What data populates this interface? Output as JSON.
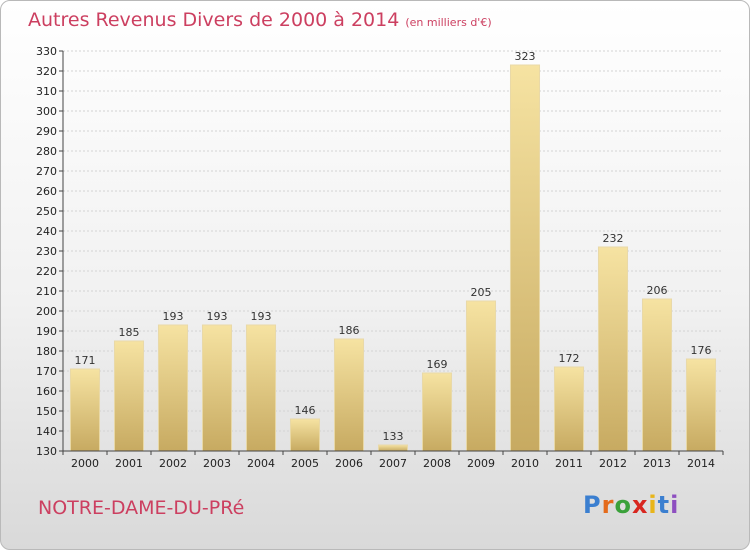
{
  "title": "Autres Revenus Divers de 2000 à 2014",
  "unit_note": "(en milliers d'€)",
  "commune": "NOTRE-DAME-DU-PRé",
  "logo": {
    "letters": [
      "P",
      "r",
      "o",
      "x",
      "i",
      "t",
      "i"
    ],
    "colors": [
      "#3b7fd0",
      "#e46b1c",
      "#3aa13a",
      "#d8261f",
      "#e8b51a",
      "#3b7fd0",
      "#8e4fc0"
    ]
  },
  "colors": {
    "bar_light": "#f3dc96",
    "bar_dark": "#c8ab62",
    "title": "#cc3f60"
  },
  "chart_data": {
    "type": "bar",
    "title": "Autres Revenus Divers de 2000 à 2014",
    "categories": [
      "2000",
      "2001",
      "2002",
      "2003",
      "2004",
      "2005",
      "2006",
      "2007",
      "2008",
      "2009",
      "2010",
      "2011",
      "2012",
      "2013",
      "2014"
    ],
    "values": [
      171,
      185,
      193,
      193,
      193,
      146,
      186,
      133,
      169,
      205,
      323,
      172,
      232,
      206,
      176
    ],
    "ylim": [
      130,
      330
    ],
    "yticks": [
      130,
      140,
      150,
      160,
      170,
      180,
      190,
      200,
      210,
      220,
      230,
      240,
      250,
      260,
      270,
      280,
      290,
      300,
      310,
      320,
      330
    ],
    "grid": true
  }
}
